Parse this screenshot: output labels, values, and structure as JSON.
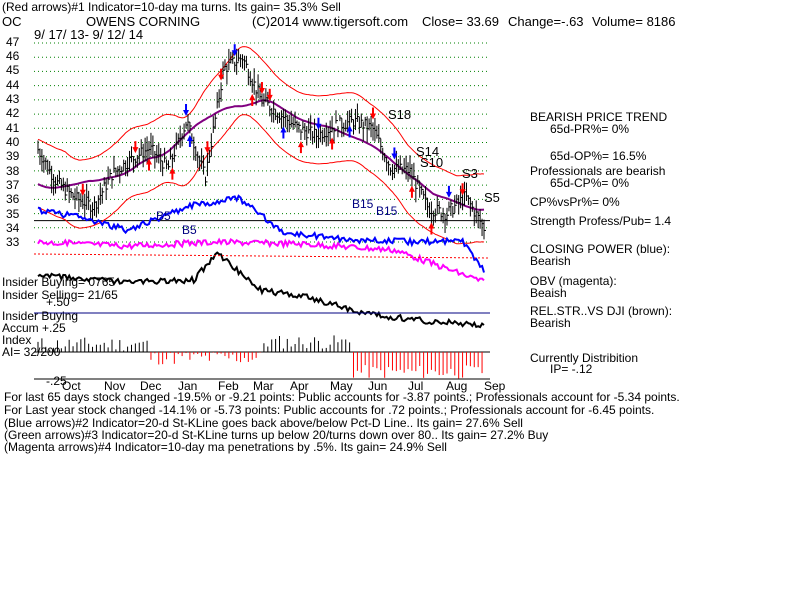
{
  "header": {
    "title_line": "(Red arrows)#1 Indicator=10-day ma turns. Its gain= 35.3% Sell",
    "ticker": "OC",
    "company": "OWENS CORNING",
    "source": "(C)2014 www.tigersoft.com",
    "close": "Close= 33.69",
    "change": "Change=-.63",
    "volume": "Volume= 8186",
    "date_range": "9/ 17/ 13- 9/ 12/ 14"
  },
  "chart_data": {
    "type": "line",
    "ylim": [
      33,
      47
    ],
    "y_ticks": [
      "47",
      "46",
      "45",
      "44",
      "43",
      "42",
      "41",
      "40",
      "39",
      "38",
      "37",
      "36",
      "35",
      "34",
      "33"
    ],
    "x_months": [
      "Oct",
      "Nov",
      "Dec",
      "Jan",
      "Feb",
      "Mar",
      "Apr",
      "May",
      "Jun",
      "Jul",
      "Aug",
      "Sep"
    ],
    "price_close_approx": [
      39.5,
      37.2,
      36.1,
      35.5,
      37.8,
      38.8,
      39.6,
      38.2,
      41.5,
      37.5,
      45.2,
      46.0,
      43.0,
      42.0,
      41.0,
      40.5,
      41.2,
      41.5,
      41.0,
      38.2,
      38.0,
      35.4,
      35.0,
      36.2,
      34.0
    ],
    "annotations": [
      {
        "label": "B5",
        "x": "Dec",
        "price": 34.9
      },
      {
        "label": "B5",
        "x": "Dec",
        "price": 34.0
      },
      {
        "label": "B15",
        "x": "May",
        "price": 35.6
      },
      {
        "label": "B15",
        "x": "Jun",
        "price": 35.2
      },
      {
        "label": "S18",
        "x": "Jun",
        "price": 41.7
      },
      {
        "label": "S14",
        "x": "Jul",
        "price": 38.8
      },
      {
        "label": "S10",
        "x": "Jul",
        "price": 38.0
      },
      {
        "label": "S3",
        "x": "Aug",
        "price": 37.0
      },
      {
        "label": "S5",
        "x": "Sep",
        "price": 35.9
      }
    ],
    "series": [
      {
        "name": "CLOSING POWER (blue)",
        "color": "#0000ff"
      },
      {
        "name": "OBV (magenta)",
        "color": "#ff00ff"
      },
      {
        "name": "REL.STR..VS DJI (brown)",
        "color": "#000000"
      }
    ],
    "accum_index": {
      "labels": [
        "Insider Buying",
        "Accum +.25",
        "Index",
        "AI= 32/200",
        "-.25"
      ],
      "ip": "IP= -.12"
    }
  },
  "side_panel": {
    "bearish_title": "BEARISH PRICE TREND",
    "pr": "65d-PR%= 0%",
    "op": "65d-OP%= 16.5%",
    "pros_bearish": "Professionals are bearish",
    "cp": "65d-CP%= 0%",
    "cpvspr": "CP%vsPr%=  0%",
    "strength": "Strength Profess/Pub= 1.4",
    "closing_power_label": "CLOSING POWER (blue):",
    "closing_power_value": "Bearish",
    "obv_label": "OBV (magenta):",
    "obv_value": "Beaish",
    "relstr_label": "REL.STR..VS DJI (brown):",
    "relstr_value": "Bearish",
    "distribution_label": "Currently Distribition",
    "ip_value": "IP= -.12"
  },
  "insider": {
    "buying": "Insider Buying= 0765",
    "selling": "Insider Selling= 21/65",
    "plus50": "+.50"
  },
  "accum": {
    "insider_buying": "Insider Buying",
    "accum": "Accum  +.25",
    "index": "Index",
    "ai": "AI= 32/200",
    "minus25": "-.25"
  },
  "footer": {
    "line1": "For last 65 days stock changed -19.5% or -9.21 points:  Public accounts for  -3.87 points.;  Professionals account for -5.34 points.",
    "line2": "For Last year stock changed -14.1% or -5.73 points:  Public accounts for  .72 points.;  Professionals account for -6.45 points.",
    "line3": "(Blue arrows)#2 Indicator=20-d St-KLine goes back above/below Pct-D Line.. Its gain= 27.6% Sell",
    "line4": "(Green arrows)#3 Indicator=20-d St-KLine turns up below 20/turns down over 80.. Its gain= 27.2% Buy",
    "line5": "(Magenta arrows)#4 Indicator=10-day ma penetrations by .5%. Its gain= 24.9% Sell"
  },
  "colors": {
    "price_bars": "#000000",
    "ma_line": "#800080",
    "band": "#ff0000",
    "closing_power": "#0000ff",
    "obv": "#ff00ff",
    "relstr": "#000000",
    "grid": "#008000",
    "sell_arrow": "#ff0000",
    "buy_arrow": "#0000ff",
    "accum_bar": "#ff0000"
  }
}
